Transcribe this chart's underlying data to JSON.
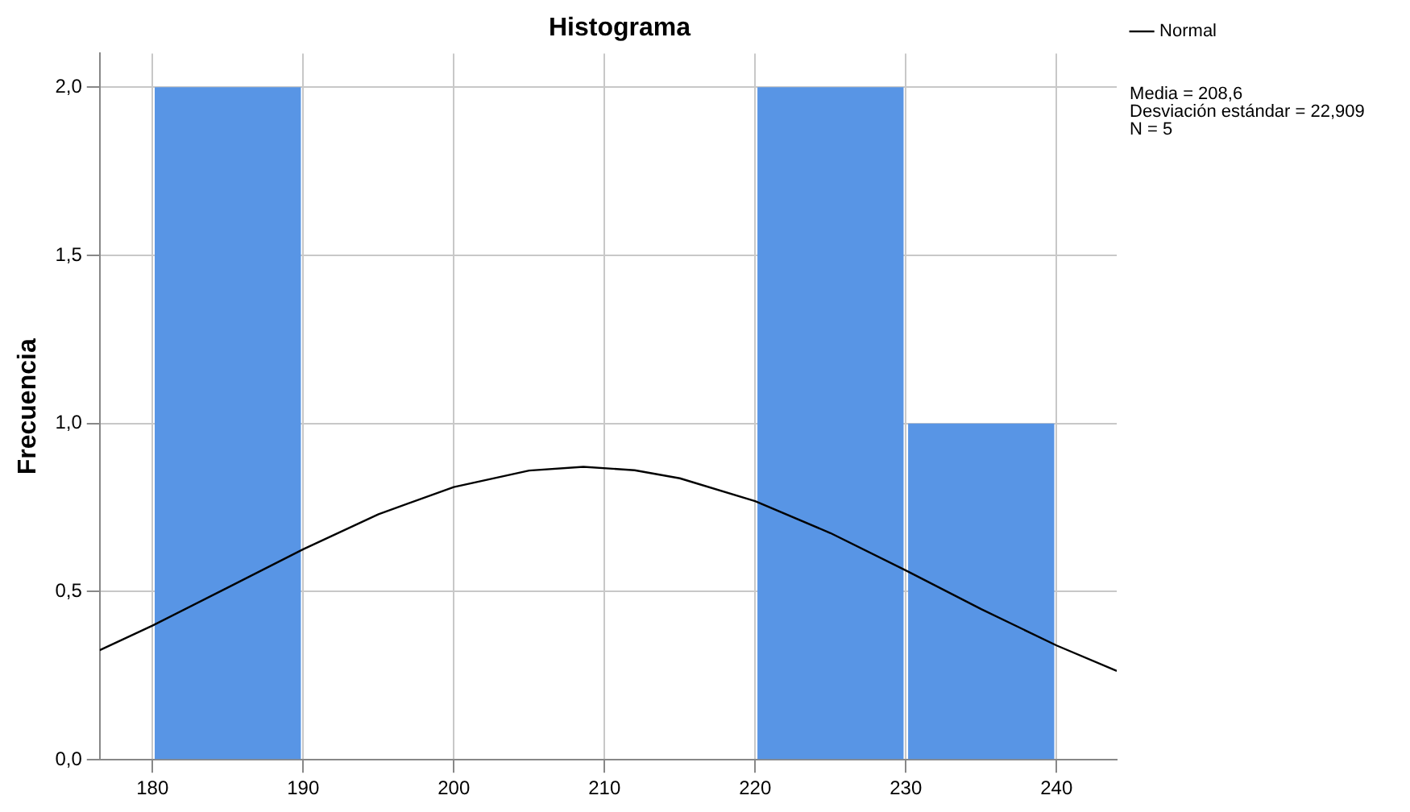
{
  "chart_data": {
    "type": "histogram",
    "title": "Histograma",
    "ylabel": "Frecuencia",
    "bins": [
      180,
      190,
      200,
      210,
      220,
      230,
      240
    ],
    "values": [
      2,
      0,
      0,
      0,
      2,
      1
    ],
    "color": "#5895e5",
    "series": [
      {
        "name": "Normal",
        "type": "line",
        "color": "#000000",
        "x": [
          176.5,
          180,
          185,
          190,
          195,
          200,
          205,
          208.6,
          212,
          215,
          220,
          225,
          230,
          235,
          240,
          244
        ],
        "values": [
          0.326,
          0.399,
          0.512,
          0.626,
          0.73,
          0.811,
          0.86,
          0.871,
          0.861,
          0.837,
          0.769,
          0.674,
          0.563,
          0.448,
          0.34,
          0.264
        ]
      }
    ],
    "xlim": [
      176.5,
      244
    ],
    "xticks": [
      180,
      190,
      200,
      210,
      220,
      230,
      240
    ],
    "ylim": [
      0,
      2.1
    ],
    "yticks": [
      {
        "value": 0,
        "label": "0,0"
      },
      {
        "value": 0.5,
        "label": "0,5"
      },
      {
        "value": 1,
        "label": "1,0"
      },
      {
        "value": 1.5,
        "label": "1,5"
      },
      {
        "value": 2,
        "label": "2,0"
      }
    ],
    "grid": true,
    "legend": "top right",
    "marker": "none",
    "annotations": [
      "Media = 208,6",
      "Desviación estándar = 22,909",
      "N = 5"
    ]
  }
}
